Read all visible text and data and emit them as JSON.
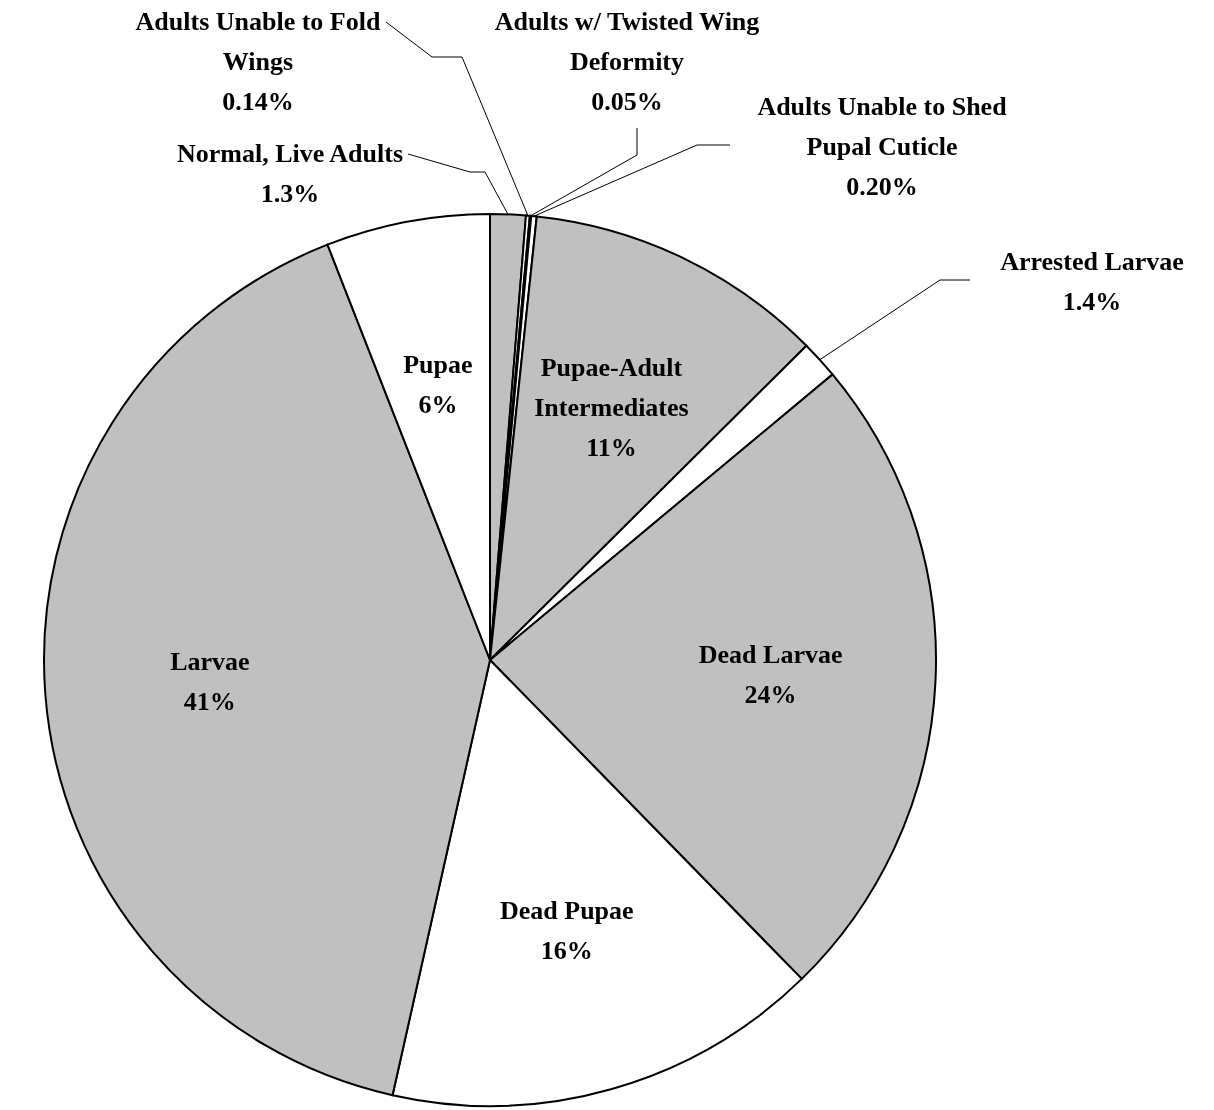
{
  "chart_data": {
    "type": "pie",
    "categories": [
      "Normal, Live Adults",
      "Adults Unable to Fold Wings",
      "Adults w/ Twisted Wing Deformity",
      "Adults Unable to Shed Pupal Cuticle",
      "Pupae-Adult Intermediates",
      "Arrested Larvae",
      "Dead Larvae",
      "Dead Pupae",
      "Larvae",
      "Pupae"
    ],
    "values": [
      1.3,
      0.14,
      0.05,
      0.2,
      11,
      1.4,
      24,
      16,
      41,
      6
    ],
    "value_labels": [
      "1.3%",
      "0.14%",
      "0.05%",
      "0.20%",
      "11%",
      "1.4%",
      "24%",
      "16%",
      "41%",
      "6%"
    ],
    "colors": [
      "#c0c0c0",
      "#ffffff",
      "#c0c0c0",
      "#ffffff",
      "#c0c0c0",
      "#ffffff",
      "#c0c0c0",
      "#ffffff",
      "#c0c0c0",
      "#ffffff"
    ]
  }
}
